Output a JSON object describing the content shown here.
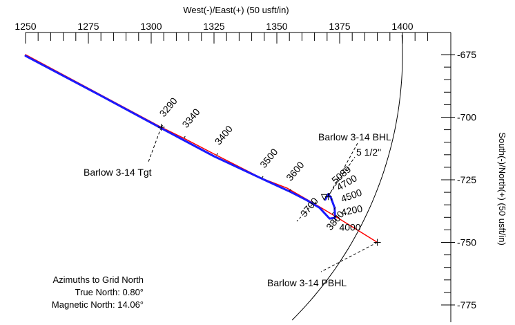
{
  "chart_data": {
    "type": "line",
    "xlabel": "West(-)/East(+) (50 usft/in)",
    "ylabel": "South(-)/North(+) (50 usft/in)",
    "xlim": [
      1250,
      1400
    ],
    "ylim": [
      -775,
      -675
    ],
    "xticks": [
      1250,
      1275,
      1300,
      1325,
      1350,
      1375,
      1400
    ],
    "yticks": [
      -675,
      -700,
      -725,
      -750,
      -775
    ],
    "colors": {
      "plan": "#ff0000",
      "actual": "#1a1aff",
      "axis": "#000000"
    },
    "series": [
      {
        "role": "plan",
        "points": [
          [
            1250,
            -675
          ],
          [
            1304,
            -704
          ],
          [
            1313,
            -708.4
          ],
          [
            1326,
            -715.2
          ],
          [
            1344,
            -724.4
          ],
          [
            1354,
            -728.3
          ],
          [
            1365,
            -734.6
          ],
          [
            1372,
            -738.8
          ],
          [
            1390,
            -750
          ]
        ]
      },
      {
        "role": "actual",
        "points": [
          [
            1250,
            -675.5
          ],
          [
            1280,
            -691.4
          ],
          [
            1304,
            -704.4
          ],
          [
            1325,
            -715.6
          ],
          [
            1345,
            -725
          ],
          [
            1355,
            -729.6
          ],
          [
            1362,
            -733.2
          ],
          [
            1367,
            -736.2
          ],
          [
            1371,
            -740.5
          ],
          [
            1373.2,
            -740.2
          ],
          [
            1373,
            -736.2
          ],
          [
            1371.5,
            -732.1
          ],
          [
            1370.5,
            -730.7
          ],
          [
            1369.3,
            -732.9
          ]
        ]
      }
    ],
    "measured_depth_labels": [
      {
        "text": "3290",
        "x": 1304,
        "y": -704
      },
      {
        "text": "3340",
        "x": 1313,
        "y": -708.4
      },
      {
        "text": "3400",
        "x": 1326,
        "y": -715.2
      },
      {
        "text": "3500",
        "x": 1344,
        "y": -724.4
      },
      {
        "text": "3600",
        "x": 1355,
        "y": -729.6
      },
      {
        "text": "3700",
        "x": 1365,
        "y": -734.6
      },
      {
        "text": "3800",
        "x": 1372,
        "y": -738.8
      },
      {
        "text": "4000",
        "x": 1373.2,
        "y": -741.5
      },
      {
        "text": "4200",
        "x": 1373.2,
        "y": -740
      },
      {
        "text": "4500",
        "x": 1372.8,
        "y": -736.8
      },
      {
        "text": "4700",
        "x": 1371.5,
        "y": -733.3
      },
      {
        "text": "5089",
        "x": 1370.5,
        "y": -731.2
      }
    ],
    "targets": [
      {
        "name": "Barlow 3-14 Tgt",
        "x": 1304,
        "y": -704
      },
      {
        "name": "Barlow 3-14 BHL",
        "x": 1370.5,
        "y": -731.7
      },
      {
        "name": "Barlow 3-14 PBHL",
        "x": 1390,
        "y": -750
      }
    ],
    "casing_label": "5 1/2\"",
    "hardline_arc": {
      "center": [
        1250,
        -675
      ],
      "radius": 150
    },
    "azimuth_note": [
      "Azimuths to Grid North",
      "True North: 0.80°",
      "Magnetic North: 14.06°"
    ]
  }
}
